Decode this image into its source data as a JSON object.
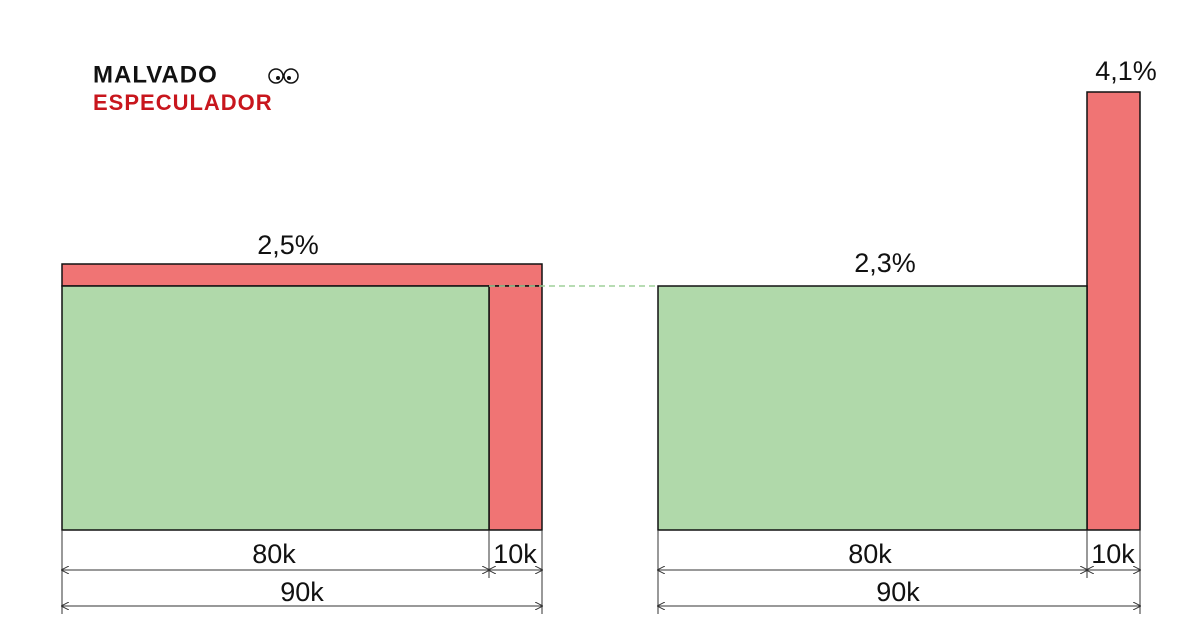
{
  "logo": {
    "line1": "MALVADO",
    "line2": "ESPECULADOR"
  },
  "left": {
    "rate": "2,5%",
    "part_a": "80k",
    "part_b": "10k",
    "total": "90k"
  },
  "right": {
    "rate_main": "2,3%",
    "rate_extra": "4,1%",
    "part_a": "80k",
    "part_b": "10k",
    "total": "90k"
  }
}
